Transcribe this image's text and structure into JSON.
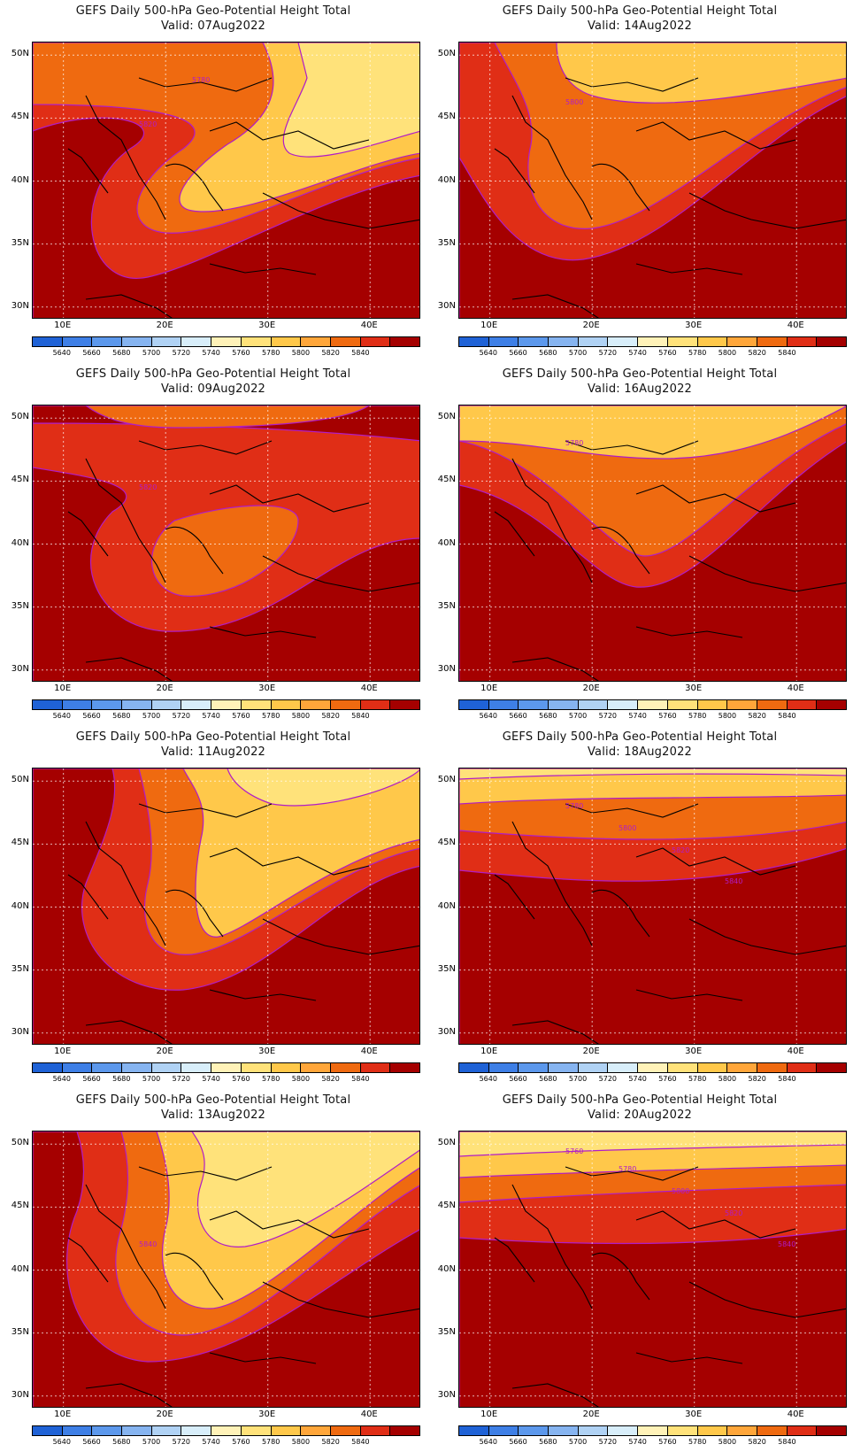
{
  "title_line1": "GEFS Daily 500-hPa Geo-Potential Height Total",
  "lat_labels": [
    "50N",
    "45N",
    "40N",
    "35N",
    "30N"
  ],
  "lon_labels": [
    "10E",
    "20E",
    "30E",
    "40E"
  ],
  "colorbar": {
    "colors": [
      "#1f62d6",
      "#3e7fe6",
      "#5c98ec",
      "#86b4f0",
      "#b0d2f4",
      "#d8eefa",
      "#fff2b8",
      "#ffe27a",
      "#ffc84a",
      "#ffa63a",
      "#ef6a10",
      "#e02e16",
      "#a50000"
    ],
    "labels": [
      "5640",
      "5660",
      "5680",
      "5700",
      "5720",
      "5740",
      "5760",
      "5780",
      "5800",
      "5820",
      "5840"
    ]
  },
  "panels": [
    {
      "valid": "Valid: 07Aug2022",
      "contours": [
        "5820",
        "5780"
      ]
    },
    {
      "valid": "Valid: 14Aug2022",
      "contours": [
        "5800"
      ]
    },
    {
      "valid": "Valid: 09Aug2022",
      "contours": [
        "5820"
      ]
    },
    {
      "valid": "Valid: 16Aug2022",
      "contours": [
        "5780"
      ]
    },
    {
      "valid": "Valid: 11Aug2022",
      "contours": []
    },
    {
      "valid": "Valid: 18Aug2022",
      "contours": [
        "5780",
        "5800",
        "5820",
        "5840"
      ]
    },
    {
      "valid": "Valid: 13Aug2022",
      "contours": [
        "5840"
      ]
    },
    {
      "valid": "Valid: 20Aug2022",
      "contours": [
        "5760",
        "5780",
        "5800",
        "5820",
        "5840"
      ]
    }
  ],
  "map_extent": {
    "lon": [
      7,
      45
    ],
    "lat": [
      29,
      51
    ]
  }
}
